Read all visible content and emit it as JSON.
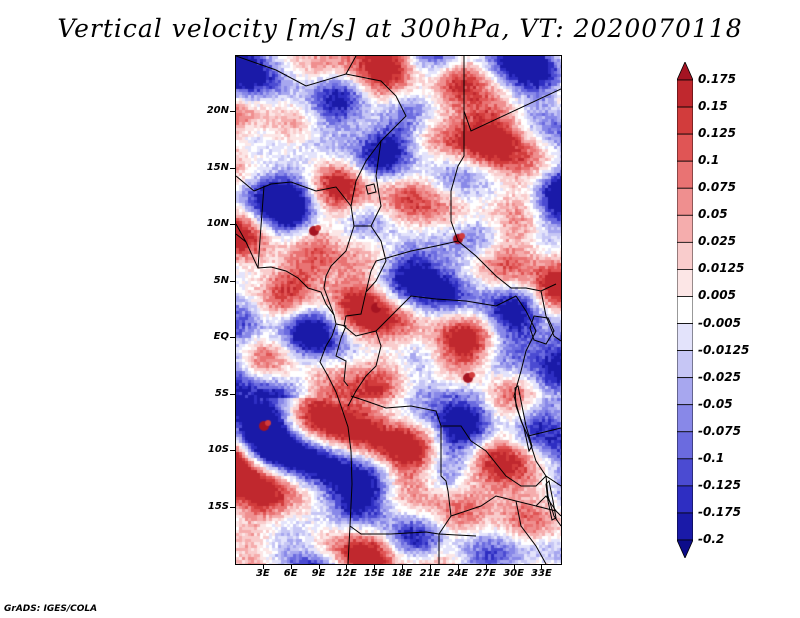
{
  "title": "Vertical velocity [m/s] at 300hPa, VT: 2020070118",
  "footer": "GrADS: IGES/COLA",
  "map": {
    "lon_range": [
      0,
      35
    ],
    "lat_range": [
      -20,
      25
    ],
    "lat_ticks": [
      {
        "value": 20,
        "label": "20N"
      },
      {
        "value": 15,
        "label": "15N"
      },
      {
        "value": 10,
        "label": "10N"
      },
      {
        "value": 5,
        "label": "5N"
      },
      {
        "value": 0,
        "label": "EQ"
      },
      {
        "value": -5,
        "label": "5S"
      },
      {
        "value": -10,
        "label": "10S"
      },
      {
        "value": -15,
        "label": "15S"
      }
    ],
    "lon_ticks": [
      {
        "value": 3,
        "label": "3E"
      },
      {
        "value": 6,
        "label": "6E"
      },
      {
        "value": 9,
        "label": "9E"
      },
      {
        "value": 12,
        "label": "12E"
      },
      {
        "value": 15,
        "label": "15E"
      },
      {
        "value": 18,
        "label": "18E"
      },
      {
        "value": 21,
        "label": "21E"
      },
      {
        "value": 24,
        "label": "24E"
      },
      {
        "value": 27,
        "label": "27E"
      },
      {
        "value": 30,
        "label": "30E"
      },
      {
        "value": 33,
        "label": "33E"
      }
    ]
  },
  "colorbar": {
    "levels": [
      "0.175",
      "0.15",
      "0.125",
      "0.1",
      "0.075",
      "0.05",
      "0.025",
      "0.0125",
      "0.005",
      "-0.005",
      "-0.0125",
      "-0.025",
      "-0.05",
      "-0.075",
      "-0.1",
      "-0.125",
      "-0.175",
      "-0.2"
    ],
    "colors": [
      "#a51422",
      "#c0282e",
      "#d23c3c",
      "#e05555",
      "#e97373",
      "#ef8f8f",
      "#f5adad",
      "#f9cccc",
      "#fce6e6",
      "#ffffff",
      "#e3e3fb",
      "#c6c6f5",
      "#a7a7ef",
      "#8888e8",
      "#6b6bdf",
      "#4b4bd2",
      "#2e2ec2",
      "#1a1aa8",
      "#0c0c8a"
    ]
  }
}
